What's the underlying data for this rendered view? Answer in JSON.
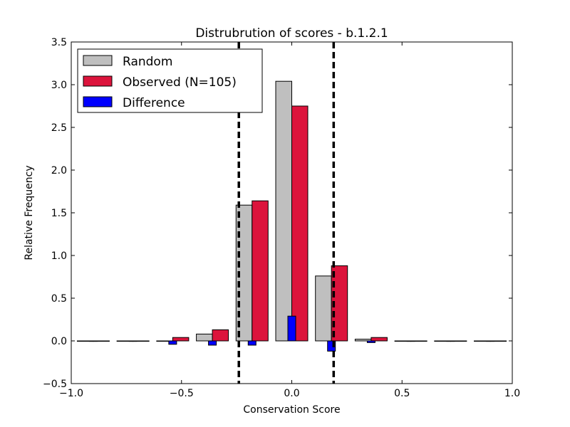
{
  "chart_data": {
    "type": "bar",
    "title": "Distrubrution of scores - b.1.2.1",
    "xlabel": "Conservation Score",
    "ylabel": "Relative Frequency",
    "xlim": [
      -1.0,
      1.0
    ],
    "ylim": [
      -0.5,
      3.5
    ],
    "xticks": [
      "−1.0",
      "−0.5",
      "0.0",
      "0.5",
      "1.0"
    ],
    "xtick_values": [
      -1.0,
      -0.5,
      0.0,
      0.5,
      1.0
    ],
    "yticks": [
      "−0.5",
      "0.0",
      "0.5",
      "1.0",
      "1.5",
      "2.0",
      "2.5",
      "3.0",
      "3.5"
    ],
    "ytick_values": [
      -0.5,
      0.0,
      0.5,
      1.0,
      1.5,
      2.0,
      2.5,
      3.0,
      3.5
    ],
    "bins": [
      -0.9,
      -0.72,
      -0.54,
      -0.36,
      -0.18,
      0.0,
      0.18,
      0.36,
      0.54,
      0.72,
      0.9
    ],
    "legend_position": "top-left",
    "series": [
      {
        "name": "Random",
        "color": "#bfbfbf",
        "values": [
          0.0,
          0.0,
          0.0,
          0.08,
          1.59,
          3.04,
          0.76,
          0.02,
          0.0,
          0.0,
          0.0
        ]
      },
      {
        "name": "Observed (N=105)",
        "color": "#dc143c",
        "values": [
          0.0,
          0.0,
          0.04,
          0.13,
          1.64,
          2.75,
          0.88,
          0.04,
          0.0,
          0.0,
          0.0
        ]
      },
      {
        "name": "Difference",
        "color": "#0000ff",
        "values": [
          0.0,
          0.0,
          -0.04,
          -0.05,
          -0.05,
          0.29,
          -0.12,
          -0.02,
          0.0,
          0.0,
          0.0
        ]
      }
    ],
    "vlines": [
      -0.24,
      0.19
    ],
    "vline_style": "dashed",
    "grid": false
  }
}
